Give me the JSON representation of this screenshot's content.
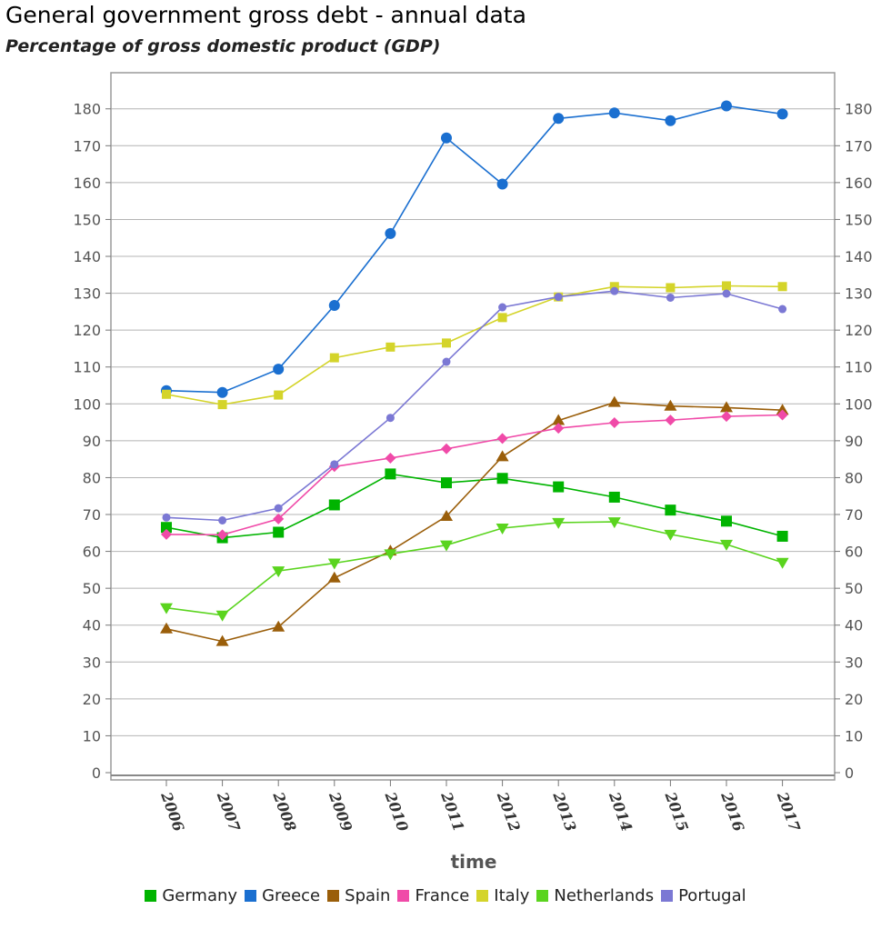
{
  "chart_data": {
    "type": "line",
    "title": "General government gross debt - annual data",
    "subtitle": "Percentage of gross domestic product (GDP)",
    "xlabel": "time",
    "ylabel": "",
    "x": [
      "2006",
      "2007",
      "2008",
      "2009",
      "2010",
      "2011",
      "2012",
      "2013",
      "2014",
      "2015",
      "2016",
      "2017"
    ],
    "ylim": [
      0,
      190
    ],
    "yticks": [
      0,
      10,
      20,
      30,
      40,
      50,
      60,
      70,
      80,
      90,
      100,
      110,
      120,
      130,
      140,
      150,
      160,
      170,
      180
    ],
    "grid": true,
    "legend_position": "bottom",
    "series": [
      {
        "name": "Germany",
        "color": "#00b400",
        "marker": "square",
        "values": [
          66.5,
          63.7,
          65.2,
          72.6,
          81.0,
          78.6,
          79.8,
          77.5,
          74.7,
          71.2,
          68.2,
          64.1
        ]
      },
      {
        "name": "Greece",
        "color": "#1a6fd0",
        "marker": "circle",
        "values": [
          103.6,
          103.1,
          109.4,
          126.7,
          146.2,
          172.1,
          159.6,
          177.4,
          178.9,
          176.8,
          180.8,
          178.6
        ]
      },
      {
        "name": "Spain",
        "color": "#9a5e0a",
        "marker": "triangle-up",
        "values": [
          39.0,
          35.6,
          39.5,
          52.8,
          60.1,
          69.5,
          85.7,
          95.5,
          100.4,
          99.4,
          99.0,
          98.3
        ]
      },
      {
        "name": "France",
        "color": "#f04aa8",
        "marker": "diamond",
        "values": [
          64.6,
          64.5,
          68.8,
          83.0,
          85.3,
          87.8,
          90.6,
          93.4,
          94.9,
          95.6,
          96.6,
          97.0
        ]
      },
      {
        "name": "Italy",
        "color": "#d4d42a",
        "marker": "square-small",
        "values": [
          102.6,
          99.8,
          102.4,
          112.5,
          115.4,
          116.5,
          123.4,
          129.0,
          131.8,
          131.5,
          132.0,
          131.8
        ]
      },
      {
        "name": "Netherlands",
        "color": "#5ad41e",
        "marker": "triangle-down",
        "values": [
          44.7,
          42.7,
          54.7,
          56.8,
          59.3,
          61.7,
          66.3,
          67.8,
          68.0,
          64.6,
          61.9,
          57.0
        ]
      },
      {
        "name": "Portugal",
        "color": "#7b78d4",
        "marker": "circle-small",
        "values": [
          69.2,
          68.4,
          71.7,
          83.6,
          96.2,
          111.4,
          126.2,
          129.0,
          130.6,
          128.8,
          129.9,
          125.7
        ]
      }
    ]
  }
}
